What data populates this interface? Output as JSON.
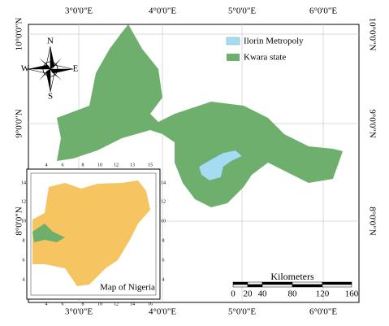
{
  "map": {
    "longitude_labels": [
      "3°0'0\"E",
      "4°0'0\"E",
      "5°0'0\"E",
      "6°0'0\"E"
    ],
    "latitude_labels": [
      "10°0'0\"N",
      "9°0'0\"N",
      "8°0'0\"N"
    ],
    "legend": [
      "Ilorin Metropoly",
      "Kwara state"
    ],
    "compass": {
      "north": "N",
      "south": "S",
      "east": "E",
      "west": "W"
    },
    "scale_bar": {
      "title": "Kilometers",
      "labels": [
        "0",
        "20",
        "40",
        "80",
        "120",
        "160"
      ]
    },
    "inset": {
      "title": "Map of Nigeria",
      "top_ticks": [
        "4",
        "6",
        "8",
        "10",
        "12",
        "13",
        "15"
      ],
      "bottom_ticks": [
        "4",
        "6",
        "8",
        "10",
        "12",
        "14",
        "16"
      ],
      "left_ticks": [
        "14",
        "12",
        "10",
        "8",
        "6",
        "4"
      ],
      "right_ticks": [
        "14",
        "12",
        "10",
        "8",
        "6",
        "4"
      ]
    }
  }
}
